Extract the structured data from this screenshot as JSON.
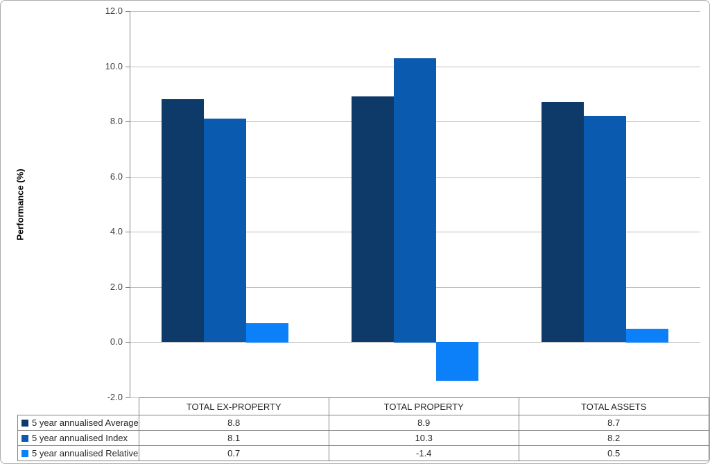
{
  "chart_data": {
    "type": "bar",
    "title": "",
    "ylabel": "Performance (%)",
    "categories": [
      "TOTAL EX-PROPERTY",
      "TOTAL PROPERTY",
      "TOTAL ASSETS"
    ],
    "series": [
      {
        "name": "5 year annualised Average",
        "color": "#0d3a69",
        "values": [
          8.8,
          8.9,
          8.7
        ]
      },
      {
        "name": "5 year annualised Index",
        "color": "#0a5ab0",
        "values": [
          8.1,
          10.3,
          8.2
        ]
      },
      {
        "name": "5 year annualised Relative",
        "color": "#0b80f8",
        "values": [
          0.7,
          -1.4,
          0.5
        ]
      }
    ],
    "ylim": [
      -2.0,
      12.0
    ],
    "ytick_step": 2.0,
    "grid": true,
    "legend_position": "data-table-left",
    "data_table": true
  },
  "styles": {
    "gridline_color": "#bfbfbf",
    "axis_color": "#808080",
    "table_border_color": "#808080",
    "tick_text_color": "#3f3f3f",
    "table_text_color": "#262626"
  }
}
